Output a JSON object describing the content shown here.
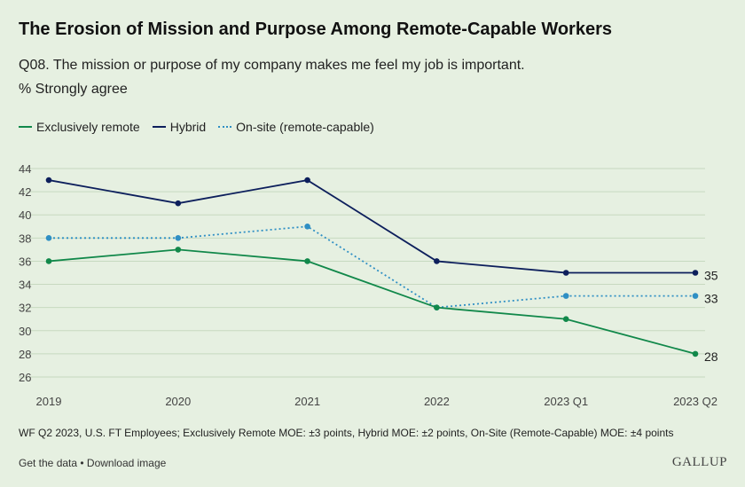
{
  "header": {
    "title": "The Erosion of Mission and Purpose Among Remote-Capable Workers",
    "subtitle": "Q08. The mission or purpose of my company makes me feel my job is important.",
    "measure": "% Strongly agree"
  },
  "legend": {
    "exclusively_remote": "Exclusively remote",
    "hybrid": "Hybrid",
    "onsite": "On-site (remote-capable)"
  },
  "footer": {
    "note": "WF Q2 2023, U.S. FT Employees; Exclusively Remote MOE: ±3 points, Hybrid MOE: ±2 points, On-Site (Remote-Capable) MOE: ±4 points",
    "get_data": "Get the data",
    "separator": " • ",
    "download": "Download image",
    "logo": "GALLUP"
  },
  "chart_data": {
    "type": "line",
    "categories": [
      "2019",
      "2020",
      "2021",
      "2022",
      "2023 Q1",
      "2023 Q2"
    ],
    "ylim": [
      26,
      44
    ],
    "yticks": [
      26,
      28,
      30,
      32,
      34,
      36,
      38,
      40,
      42,
      44
    ],
    "grid": true,
    "legend_position": "top-left",
    "series": [
      {
        "key": "exclusively_remote",
        "name": "Exclusively remote",
        "color": "#11884a",
        "dashed": false,
        "values": [
          36,
          37,
          36,
          32,
          31,
          28
        ],
        "end_label": "28"
      },
      {
        "key": "hybrid",
        "name": "Hybrid",
        "color": "#0d1f5c",
        "dashed": false,
        "values": [
          43,
          41,
          43,
          36,
          35,
          35
        ],
        "end_label": "35"
      },
      {
        "key": "onsite",
        "name": "On-site (remote-capable)",
        "color": "#2f8fc4",
        "dashed": true,
        "values": [
          38,
          38,
          39,
          32,
          33,
          33
        ],
        "end_label": "33"
      }
    ]
  }
}
